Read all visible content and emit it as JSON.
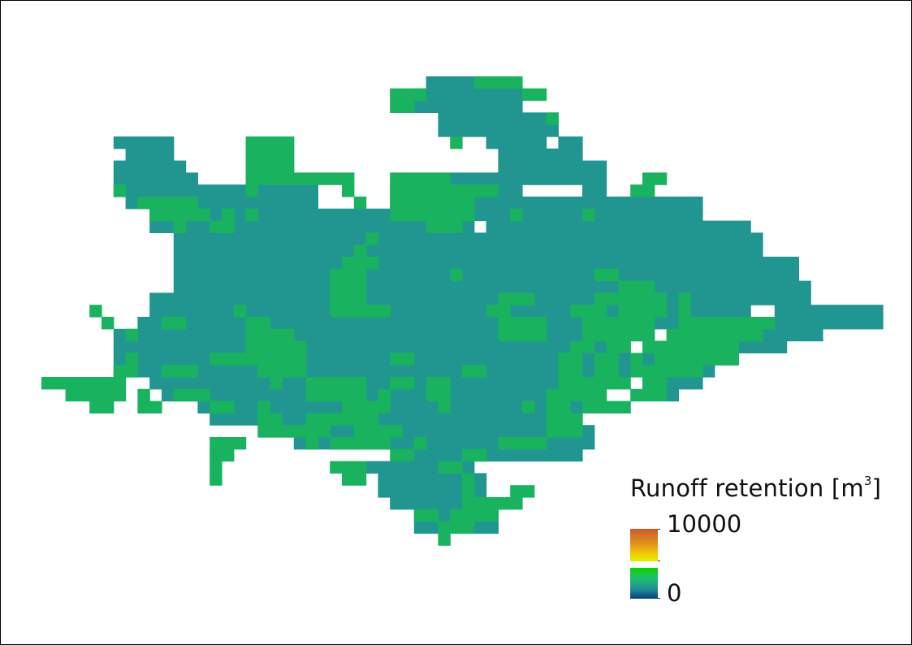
{
  "colors": {
    "background": "#ffffff",
    "teal_cell": "#21958f",
    "green_cell": "#19b35f"
  },
  "legend": {
    "title_prefix": "Runoff retention [m",
    "title_exponent": "3",
    "title_suffix": "]",
    "max_label": "10000",
    "min_label": "0",
    "colormap_top": [
      "#c95a2c",
      "#e0901e",
      "#f3d000",
      "#d7f500"
    ],
    "colormap_bottom": [
      "#10d000",
      "#1fbf70",
      "#208e96",
      "#063f7a"
    ]
  }
}
